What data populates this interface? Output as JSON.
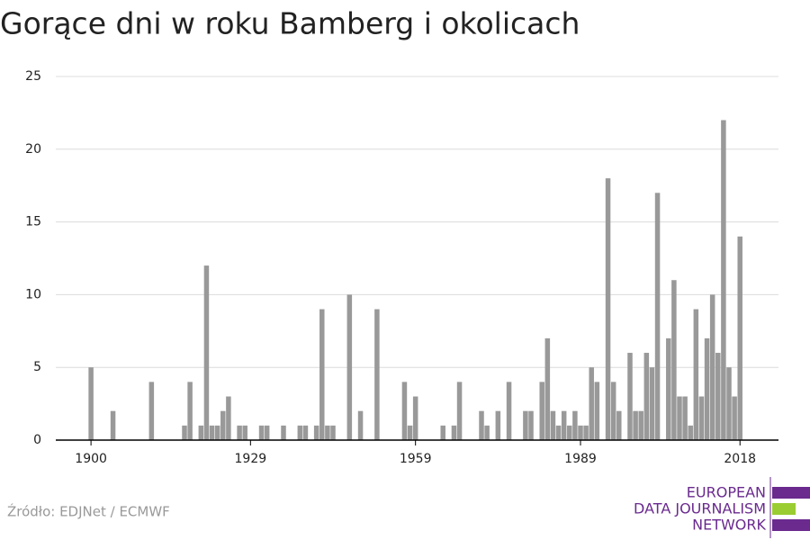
{
  "chart_data": {
    "type": "bar",
    "title": "Gorące dni w roku Bamberg i okolicach",
    "x": [
      1900,
      1901,
      1902,
      1903,
      1904,
      1905,
      1906,
      1907,
      1908,
      1909,
      1910,
      1911,
      1912,
      1913,
      1914,
      1915,
      1916,
      1917,
      1918,
      1919,
      1920,
      1921,
      1922,
      1923,
      1924,
      1925,
      1926,
      1927,
      1928,
      1929,
      1930,
      1931,
      1932,
      1933,
      1934,
      1935,
      1936,
      1937,
      1938,
      1939,
      1940,
      1941,
      1942,
      1943,
      1944,
      1945,
      1946,
      1947,
      1948,
      1949,
      1950,
      1951,
      1952,
      1953,
      1954,
      1955,
      1956,
      1957,
      1958,
      1959,
      1960,
      1961,
      1962,
      1963,
      1964,
      1965,
      1966,
      1967,
      1968,
      1969,
      1970,
      1971,
      1972,
      1973,
      1974,
      1975,
      1976,
      1977,
      1978,
      1979,
      1980,
      1981,
      1982,
      1983,
      1984,
      1985,
      1986,
      1987,
      1988,
      1989,
      1990,
      1991,
      1992,
      1993,
      1994,
      1995,
      1996,
      1997,
      1998,
      1999,
      2000,
      2001,
      2002,
      2003,
      2004,
      2005,
      2006,
      2007,
      2008,
      2009,
      2010,
      2011,
      2012,
      2013,
      2014,
      2015,
      2016,
      2017,
      2018
    ],
    "values": [
      5,
      0,
      0,
      0,
      2,
      0,
      0,
      0,
      0,
      0,
      0,
      4,
      0,
      0,
      0,
      0,
      0,
      1,
      4,
      0,
      1,
      12,
      1,
      1,
      2,
      3,
      0,
      1,
      1,
      0,
      0,
      1,
      1,
      0,
      0,
      1,
      0,
      0,
      1,
      1,
      0,
      1,
      9,
      1,
      1,
      0,
      0,
      10,
      0,
      2,
      0,
      0,
      9,
      0,
      0,
      0,
      0,
      4,
      1,
      3,
      0,
      0,
      0,
      0,
      1,
      0,
      1,
      4,
      0,
      0,
      0,
      2,
      1,
      0,
      2,
      0,
      4,
      0,
      0,
      2,
      2,
      0,
      4,
      7,
      2,
      1,
      2,
      1,
      2,
      1,
      1,
      5,
      4,
      0,
      18,
      4,
      2,
      0,
      6,
      2,
      2,
      6,
      5,
      17,
      0,
      7,
      11,
      3,
      3,
      1,
      9,
      3,
      7,
      10,
      6,
      22,
      5,
      3,
      14
    ],
    "color": "#999999",
    "xlim": [
      1893.6,
      2025
    ],
    "xticks": [
      1900,
      1929,
      1959,
      1989,
      2018
    ],
    "ylim": [
      0,
      25
    ],
    "yticks": [
      0,
      5,
      10,
      15,
      20,
      25
    ],
    "grid": true,
    "source": "Źródło: EDJNet / ECMWF",
    "logo": [
      "EUROPEAN",
      "DATA JOURNALISM",
      "NETWORK"
    ]
  }
}
